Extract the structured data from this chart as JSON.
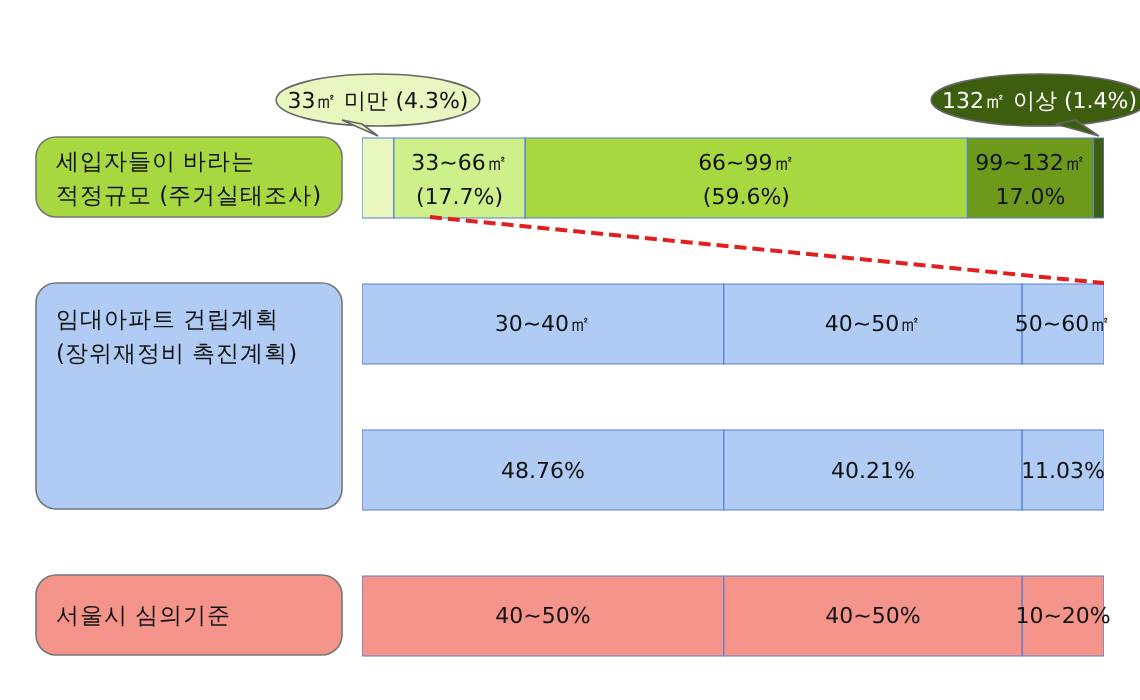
{
  "chart_data": {
    "type": "bar",
    "orientation": "horizontal",
    "stacked": true,
    "tick_labels": false,
    "legend": false,
    "grid": false,
    "xlim": [
      0,
      100
    ],
    "categories": [
      "세입자들이 바라는\n적정규모 (주거실태조사)",
      "임대아파트 건립계획\n(장위재정비 촉진계획)",
      null,
      "서울시 심의기준"
    ],
    "series": [
      {
        "colors": [
          "#e8f7c0",
          "#b0ccf4",
          "#b0ccf4",
          "#f4948a"
        ],
        "values": [
          4.3,
          48.76,
          48.76,
          48.76
        ],
        "value_labels": [
          "33㎡ 미만 (4.3%)",
          null,
          "48.76%",
          null
        ]
      },
      {
        "colors": [
          "#cdf08a",
          "#b0ccf4",
          "#b0ccf4",
          "#f4948a"
        ],
        "values": [
          17.7,
          40.21,
          40.21,
          40.21
        ],
        "value_labels": [
          "33~66㎡\n(17.7%)",
          null,
          "40.21%",
          null
        ]
      },
      {
        "colors": [
          "#a8d840",
          "#b0ccf4",
          "#b0ccf4",
          "#f4948a"
        ],
        "values": [
          59.6,
          11.03,
          11.03,
          11.03
        ],
        "value_labels": [
          "66~99㎡\n(59.6%)",
          null,
          "11.03%",
          null
        ]
      },
      {
        "colors": [
          "#6e9a1c",
          null,
          null,
          null
        ],
        "values": [
          17.0,
          null,
          null,
          null
        ],
        "value_labels": [
          "99~132㎡\n17.0%",
          null,
          null,
          null
        ]
      },
      {
        "colors": [
          "#3c5e0e",
          null,
          null,
          null
        ],
        "values": [
          1.4,
          null,
          null,
          null
        ],
        "value_labels": [
          "132㎡ 이상 (1.4%)",
          null,
          null,
          null
        ]
      }
    ],
    "annotations": [
      "30~40㎡",
      "40~50㎡",
      "50~60㎡",
      "40~50%",
      "40~50%",
      "10~20%"
    ]
  }
}
